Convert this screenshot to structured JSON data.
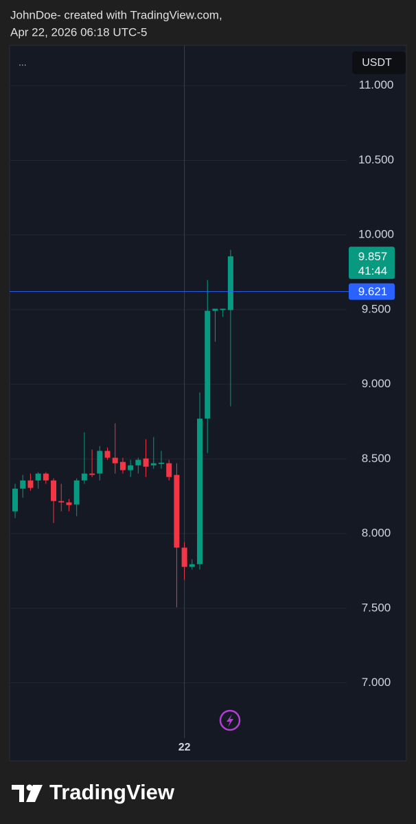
{
  "header": {
    "line1": "JohnDoe- created with TradingView.com,",
    "line2": "Apr 22, 2026 06:18 UTC-5"
  },
  "menu": "...",
  "brand": "TradingView",
  "chart_data": {
    "type": "candlestick",
    "currency": "USDT",
    "categories": [
      null,
      null,
      null,
      null,
      null,
      null,
      null,
      null,
      null,
      null,
      null,
      null,
      null,
      null,
      null,
      null,
      null,
      null,
      null,
      null,
      null,
      null,
      "22",
      null,
      null,
      null,
      null,
      null,
      null
    ],
    "open": [
      8.149,
      8.301,
      8.356,
      8.356,
      8.402,
      8.356,
      8.218,
      8.209,
      8.195,
      8.356,
      8.402,
      8.402,
      8.554,
      8.508,
      8.48,
      8.425,
      8.457,
      8.503,
      8.457,
      8.466,
      8.471,
      8.393,
      7.906,
      7.777,
      7.795,
      8.77,
      9.492,
      9.497,
      9.497
    ],
    "high": [
      8.333,
      8.393,
      8.402,
      8.411,
      8.411,
      8.37,
      8.333,
      8.232,
      8.37,
      8.678,
      8.563,
      8.586,
      8.577,
      8.738,
      8.508,
      8.494,
      8.508,
      8.632,
      8.646,
      8.554,
      8.494,
      8.471,
      7.943,
      7.828,
      8.945,
      9.699,
      9.506,
      9.506,
      9.901
    ],
    "low": [
      8.103,
      8.241,
      8.287,
      8.301,
      8.333,
      8.071,
      8.149,
      8.149,
      8.117,
      8.333,
      8.379,
      8.356,
      8.494,
      8.402,
      8.402,
      8.379,
      8.402,
      8.379,
      8.434,
      8.434,
      8.356,
      7.506,
      7.69,
      7.759,
      7.759,
      8.54,
      9.285,
      9.451,
      8.853
    ],
    "close": [
      8.301,
      8.356,
      8.306,
      8.402,
      8.356,
      8.218,
      8.209,
      8.191,
      8.356,
      8.402,
      8.393,
      8.554,
      8.508,
      8.471,
      8.425,
      8.457,
      8.494,
      8.448,
      8.471,
      8.475,
      8.379,
      7.906,
      7.777,
      7.795,
      8.77,
      9.492,
      9.506,
      9.506,
      9.857
    ],
    "up_color": "#089981",
    "down_color": "#f23645",
    "ylim": [
      6.63,
      11.27
    ],
    "yticks": [
      {
        "value": 7,
        "label": "7.000"
      },
      {
        "value": 7.5,
        "label": "7.500"
      },
      {
        "value": 8,
        "label": "8.000"
      },
      {
        "value": 8.5,
        "label": "8.500"
      },
      {
        "value": 9,
        "label": "9.000"
      },
      {
        "value": 9.5,
        "label": "9.500"
      },
      {
        "value": 10,
        "label": "10.000"
      },
      {
        "value": 10.5,
        "label": "10.500"
      },
      {
        "value": 11,
        "label": "11.000"
      }
    ],
    "grid": true,
    "last_price": 9.857,
    "countdown": "41:44",
    "price_line": 9.621,
    "price_line_color": "#2962ff"
  }
}
